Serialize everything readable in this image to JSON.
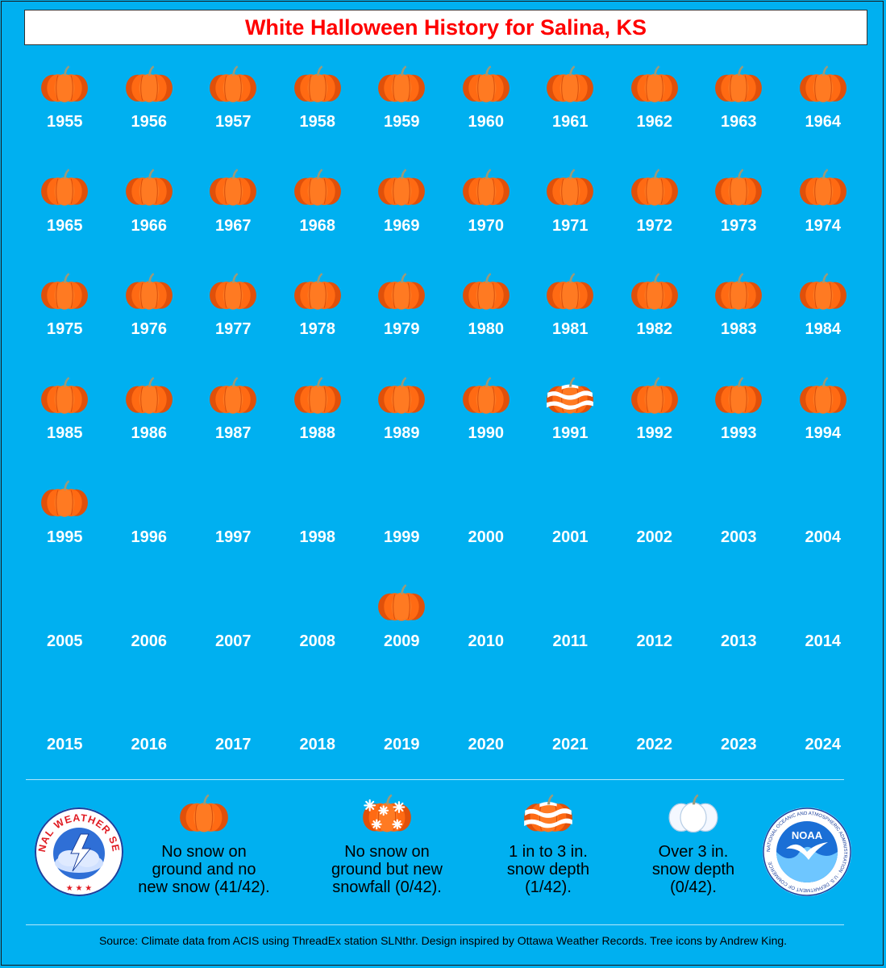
{
  "title": "White Halloween History for Salina, KS",
  "colors": {
    "background": "#00b0f0",
    "title": "#ff0000",
    "pumpkin": "#ff6a13",
    "year_text": "#ffffff"
  },
  "icon_names": {
    "plain": "pumpkin-icon",
    "new_snowfall": "snowflake-pumpkin-icon",
    "snow_1_3": "snow-striped-pumpkin-icon",
    "snow_over_3": "white-pumpkin-icon"
  },
  "years": [
    {
      "year": "1955",
      "icon": "plain"
    },
    {
      "year": "1956",
      "icon": "plain"
    },
    {
      "year": "1957",
      "icon": "plain"
    },
    {
      "year": "1958",
      "icon": "plain"
    },
    {
      "year": "1959",
      "icon": "plain"
    },
    {
      "year": "1960",
      "icon": "plain"
    },
    {
      "year": "1961",
      "icon": "plain"
    },
    {
      "year": "1962",
      "icon": "plain"
    },
    {
      "year": "1963",
      "icon": "plain"
    },
    {
      "year": "1964",
      "icon": "plain"
    },
    {
      "year": "1965",
      "icon": "plain"
    },
    {
      "year": "1966",
      "icon": "plain"
    },
    {
      "year": "1967",
      "icon": "plain"
    },
    {
      "year": "1968",
      "icon": "plain"
    },
    {
      "year": "1969",
      "icon": "plain"
    },
    {
      "year": "1970",
      "icon": "plain"
    },
    {
      "year": "1971",
      "icon": "plain"
    },
    {
      "year": "1972",
      "icon": "plain"
    },
    {
      "year": "1973",
      "icon": "plain"
    },
    {
      "year": "1974",
      "icon": "plain"
    },
    {
      "year": "1975",
      "icon": "plain"
    },
    {
      "year": "1976",
      "icon": "plain"
    },
    {
      "year": "1977",
      "icon": "plain"
    },
    {
      "year": "1978",
      "icon": "plain"
    },
    {
      "year": "1979",
      "icon": "plain"
    },
    {
      "year": "1980",
      "icon": "plain"
    },
    {
      "year": "1981",
      "icon": "plain"
    },
    {
      "year": "1982",
      "icon": "plain"
    },
    {
      "year": "1983",
      "icon": "plain"
    },
    {
      "year": "1984",
      "icon": "plain"
    },
    {
      "year": "1985",
      "icon": "plain"
    },
    {
      "year": "1986",
      "icon": "plain"
    },
    {
      "year": "1987",
      "icon": "plain"
    },
    {
      "year": "1988",
      "icon": "plain"
    },
    {
      "year": "1989",
      "icon": "plain"
    },
    {
      "year": "1990",
      "icon": "plain"
    },
    {
      "year": "1991",
      "icon": "snow_1_3"
    },
    {
      "year": "1992",
      "icon": "plain"
    },
    {
      "year": "1993",
      "icon": "plain"
    },
    {
      "year": "1994",
      "icon": "plain"
    },
    {
      "year": "1995",
      "icon": "plain"
    },
    {
      "year": "1996",
      "icon": null
    },
    {
      "year": "1997",
      "icon": null
    },
    {
      "year": "1998",
      "icon": null
    },
    {
      "year": "1999",
      "icon": null
    },
    {
      "year": "2000",
      "icon": null
    },
    {
      "year": "2001",
      "icon": null
    },
    {
      "year": "2002",
      "icon": null
    },
    {
      "year": "2003",
      "icon": null
    },
    {
      "year": "2004",
      "icon": null
    },
    {
      "year": "2005",
      "icon": null
    },
    {
      "year": "2006",
      "icon": null
    },
    {
      "year": "2007",
      "icon": null
    },
    {
      "year": "2008",
      "icon": null
    },
    {
      "year": "2009",
      "icon": "plain"
    },
    {
      "year": "2010",
      "icon": null
    },
    {
      "year": "2011",
      "icon": null
    },
    {
      "year": "2012",
      "icon": null
    },
    {
      "year": "2013",
      "icon": null
    },
    {
      "year": "2014",
      "icon": null
    },
    {
      "year": "2015",
      "icon": null
    },
    {
      "year": "2016",
      "icon": null
    },
    {
      "year": "2017",
      "icon": null
    },
    {
      "year": "2018",
      "icon": null
    },
    {
      "year": "2019",
      "icon": null
    },
    {
      "year": "2020",
      "icon": null
    },
    {
      "year": "2021",
      "icon": null
    },
    {
      "year": "2022",
      "icon": null
    },
    {
      "year": "2023",
      "icon": null
    },
    {
      "year": "2024",
      "icon": null
    }
  ],
  "legend": [
    {
      "icon": "plain",
      "text": "No snow on\nground and no\nnew snow (41/42)."
    },
    {
      "icon": "new_snowfall",
      "text": "No snow on\nground but new\nsnowfall (0/42)."
    },
    {
      "icon": "snow_1_3",
      "text": "1 in to 3 in.\nsnow depth\n(1/42)."
    },
    {
      "icon": "snow_over_3",
      "text": "Over 3 in.\nsnow depth\n(0/42)."
    }
  ],
  "logos": {
    "nws_text": "NATIONAL WEATHER SERVICE",
    "noaa_text": "NOAA",
    "noaa_ring_text": "NATIONAL OCEANIC AND ATMOSPHERIC ADMINISTRATION · U.S. DEPARTMENT OF COMMERCE"
  },
  "source": "Source: Climate data from ACIS using ThreadEx station SLNthr. Design inspired by Ottawa Weather Records. Tree icons by Andrew King."
}
